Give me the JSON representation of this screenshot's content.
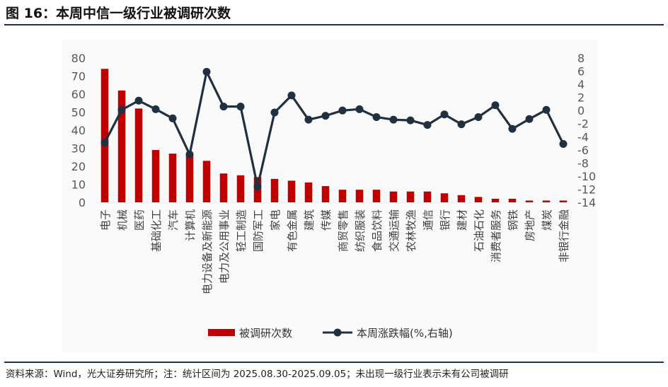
{
  "header": {
    "title": "图 16：本周中信一级行业被调研次数"
  },
  "footer": {
    "source": "资料来源：Wind，光大证券研究所；注：统计区间为 2025.08.30-2025.09.05；未出现一级行业表示未有公司被调研"
  },
  "colors": {
    "bar": "#c00000",
    "line": "#203040",
    "rule": "#1f2f4f"
  },
  "chart_data": {
    "type": "bar+line",
    "categories": [
      "电子",
      "机械",
      "医药",
      "基础化工",
      "汽车",
      "计算机",
      "电力设备及新能源",
      "电力及公用事业",
      "轻工制造",
      "国防军工",
      "家电",
      "有色金属",
      "建筑",
      "传媒",
      "商贸零售",
      "纺织服装",
      "食品饮料",
      "交通运输",
      "农林牧渔",
      "通信",
      "银行",
      "建材",
      "石油石化",
      "消费者服务",
      "钢铁",
      "房地产",
      "煤炭",
      "非银行金融"
    ],
    "series": [
      {
        "name": "被调研次数",
        "type": "bar",
        "axis": "left",
        "values": [
          74,
          62,
          52,
          29,
          27,
          26,
          23,
          16,
          15,
          14,
          13,
          12,
          11,
          9,
          7,
          7,
          7,
          6,
          6,
          6,
          5,
          4,
          3,
          2,
          2,
          1,
          1,
          1
        ]
      },
      {
        "name": "本周涨跌幅(%,右轴)",
        "type": "line",
        "axis": "right",
        "values": [
          -4.9,
          0.1,
          1.5,
          0.2,
          -1.2,
          -6.7,
          5.9,
          0.6,
          0.6,
          -11.6,
          -0.3,
          2.3,
          -1.4,
          -0.8,
          0.0,
          0.2,
          -1.0,
          -1.4,
          -1.5,
          -2.2,
          -0.6,
          -2.1,
          -1.0,
          0.8,
          -2.8,
          -1.3,
          0.1,
          -5.1
        ]
      }
    ],
    "y_left": {
      "ticks": [
        "0",
        "10",
        "20",
        "30",
        "40",
        "50",
        "60",
        "70",
        "80"
      ],
      "ylim": [
        0,
        80
      ]
    },
    "y_right": {
      "ticks": [
        "-14",
        "-12",
        "-10",
        "-8",
        "-6",
        "-4",
        "-2",
        "0",
        "2",
        "4",
        "6",
        "8"
      ],
      "ylim": [
        -14,
        8
      ]
    },
    "legend": {
      "position": "bottom",
      "items": [
        "被调研次数",
        "本周涨跌幅(%,右轴)"
      ]
    },
    "grid": false
  }
}
